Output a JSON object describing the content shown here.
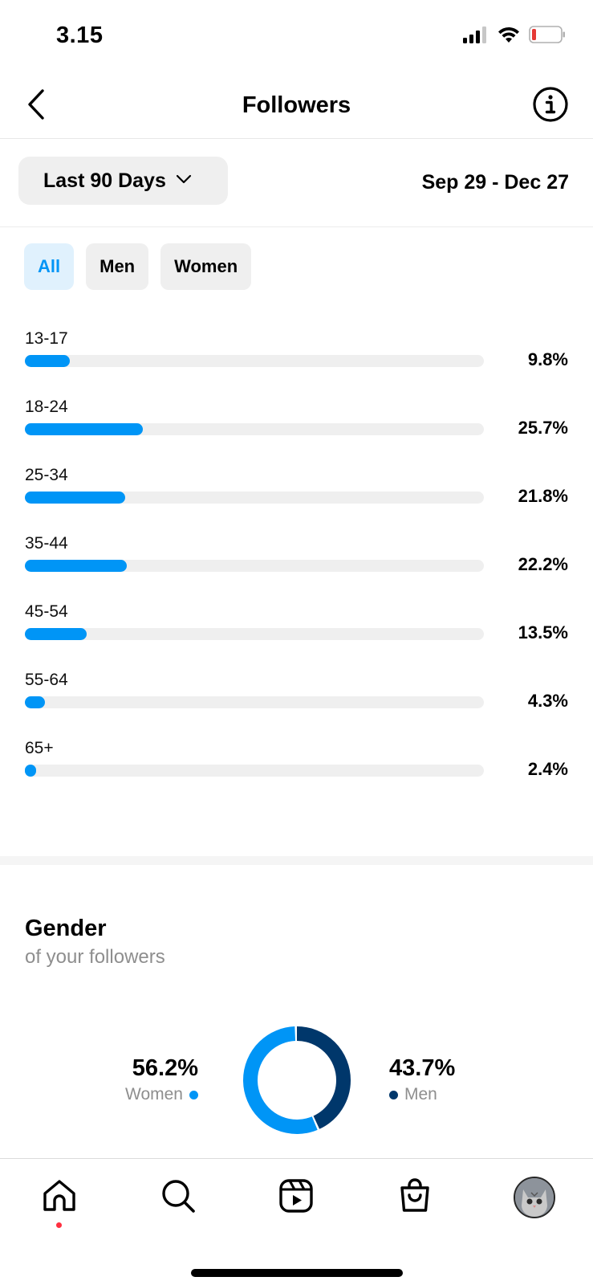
{
  "status_bar": {
    "time": "3.15",
    "signal_icon": "cellular-signal-icon",
    "wifi_icon": "wifi-icon",
    "battery_icon": "battery-low-icon",
    "battery_color": "#e53935"
  },
  "nav": {
    "title": "Followers",
    "back_icon": "chevron-left-icon",
    "info_icon": "info-icon"
  },
  "filter": {
    "range_label": "Last 90 Days",
    "dropdown_icon": "chevron-down-icon",
    "date_range": "Sep 29 - Dec 27"
  },
  "segments": [
    {
      "label": "All",
      "active": true
    },
    {
      "label": "Men",
      "active": false
    },
    {
      "label": "Women",
      "active": false
    }
  ],
  "age_ranges": [
    {
      "label": "13-17",
      "pct": "9.8%",
      "value": 9.8
    },
    {
      "label": "18-24",
      "pct": "25.7%",
      "value": 25.7
    },
    {
      "label": "25-34",
      "pct": "21.8%",
      "value": 21.8
    },
    {
      "label": "35-44",
      "pct": "22.2%",
      "value": 22.2
    },
    {
      "label": "45-54",
      "pct": "13.5%",
      "value": 13.5
    },
    {
      "label": "55-64",
      "pct": "4.3%",
      "value": 4.3
    },
    {
      "label": "65+",
      "pct": "2.4%",
      "value": 2.4
    }
  ],
  "gender": {
    "title": "Gender",
    "subtitle": "of your followers",
    "women": {
      "pct": "56.2%",
      "label": "Women",
      "value": 56.2,
      "color": "#0095f6"
    },
    "men": {
      "pct": "43.7%",
      "label": "Men",
      "value": 43.7,
      "color": "#00376b"
    }
  },
  "colors": {
    "accent": "#0095f6",
    "dark_blue": "#00376b",
    "track": "#efefef",
    "muted_text": "#8e8e8e",
    "notification": "#ff3040"
  },
  "tab_bar": {
    "items": [
      {
        "name": "home",
        "icon": "home-icon"
      },
      {
        "name": "search",
        "icon": "search-icon"
      },
      {
        "name": "reels",
        "icon": "reels-icon"
      },
      {
        "name": "shop",
        "icon": "shopping-bag-icon"
      },
      {
        "name": "profile",
        "icon": "profile-avatar-icon"
      }
    ]
  }
}
